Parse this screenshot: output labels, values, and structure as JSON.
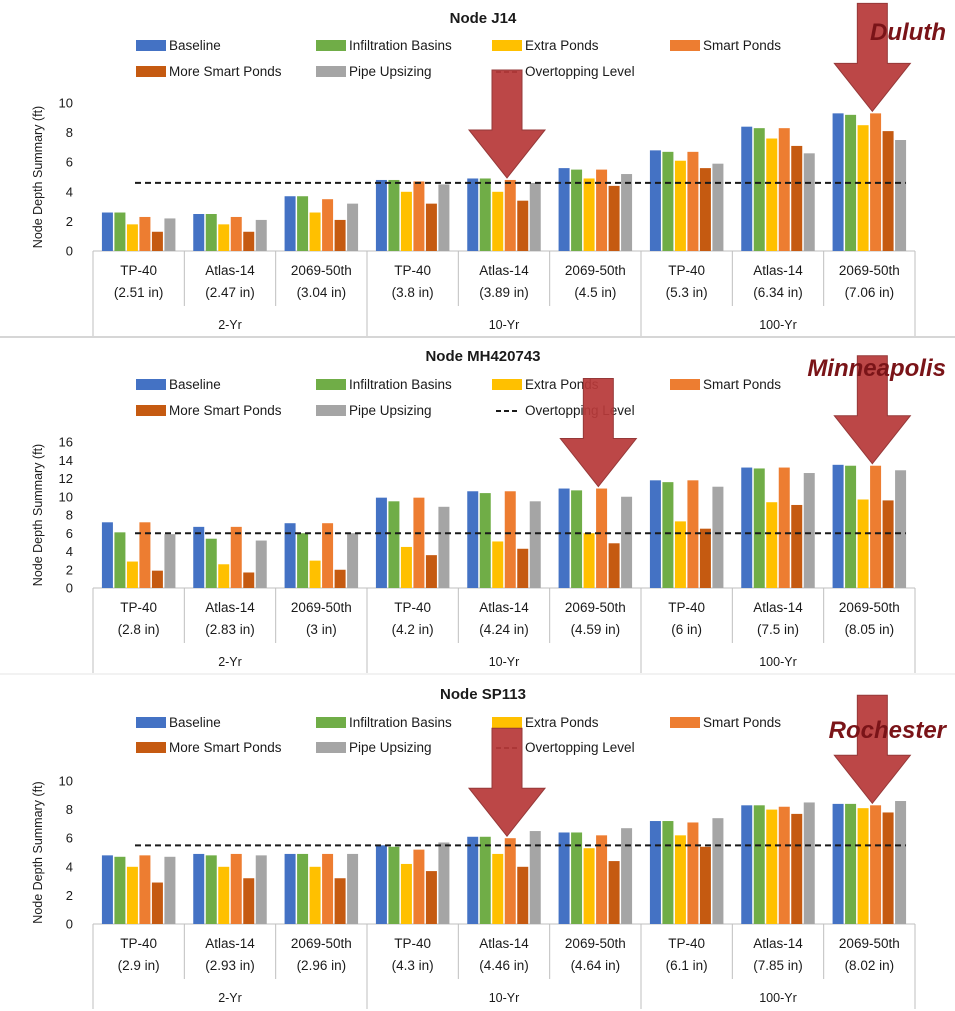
{
  "colors": {
    "Baseline": "#4472c4",
    "Infiltration Basins": "#70ad47",
    "Extra Ponds": "#ffc000",
    "Smart Ponds": "#ed7d31",
    "More Smart Ponds": "#c55a11",
    "Pipe Upsizing": "#a5a5a5",
    "Overtopping Level": "#1a1a1a",
    "arrow": "#b83a3a",
    "city_text": "#7a1418"
  },
  "legend_labels": [
    "Baseline",
    "Infiltration Basins",
    "Extra Ponds",
    "Smart Ponds",
    "More Smart Ponds",
    "Pipe Upsizing",
    "Overtopping Level"
  ],
  "chart_data": [
    {
      "type": "bar",
      "title": "Node J14",
      "city": "Duluth",
      "ylabel": "Node Depth Summary (ft)",
      "ylim": [
        0,
        10
      ],
      "yticks": [
        0,
        2,
        4,
        6,
        8,
        10
      ],
      "grid": false,
      "legend_position": "top",
      "categories": [
        [
          "TP-40",
          "(2.51 in)"
        ],
        [
          "Atlas-14",
          "(2.47 in)"
        ],
        [
          "2069-50th",
          "(3.04 in)"
        ],
        [
          "TP-40",
          "(3.8 in)"
        ],
        [
          "Atlas-14",
          "(3.89 in)"
        ],
        [
          "2069-50th",
          "(4.5 in)"
        ],
        [
          "TP-40",
          "(5.3 in)"
        ],
        [
          "Atlas-14",
          "(6.34 in)"
        ],
        [
          "2069-50th",
          "(7.06 in)"
        ]
      ],
      "groups": [
        "2-Yr",
        "10-Yr",
        "100-Yr"
      ],
      "series": [
        {
          "name": "Baseline",
          "values": [
            2.6,
            2.5,
            3.7,
            4.8,
            4.9,
            5.6,
            6.8,
            8.4,
            9.3
          ]
        },
        {
          "name": "Infiltration Basins",
          "values": [
            2.6,
            2.5,
            3.7,
            4.8,
            4.9,
            5.5,
            6.7,
            8.3,
            9.2
          ]
        },
        {
          "name": "Extra Ponds",
          "values": [
            1.8,
            1.8,
            2.6,
            4.0,
            4.0,
            4.9,
            6.1,
            7.6,
            8.5
          ]
        },
        {
          "name": "Smart Ponds",
          "values": [
            2.3,
            2.3,
            3.5,
            4.7,
            4.8,
            5.5,
            6.7,
            8.3,
            9.3
          ]
        },
        {
          "name": "More Smart Ponds",
          "values": [
            1.3,
            1.3,
            2.1,
            3.2,
            3.4,
            4.4,
            5.6,
            7.1,
            8.1
          ]
        },
        {
          "name": "Pipe Upsizing",
          "values": [
            2.2,
            2.1,
            3.2,
            4.5,
            4.6,
            5.2,
            5.9,
            6.6,
            7.5
          ]
        }
      ],
      "overtopping_level": 4.6,
      "arrow_categories": [
        4,
        8
      ]
    },
    {
      "type": "bar",
      "title": "Node MH420743",
      "city": "Minneapolis",
      "ylabel": "Node Depth Summary (ft)",
      "ylim": [
        0,
        16
      ],
      "yticks": [
        0,
        2,
        4,
        6,
        8,
        10,
        12,
        14,
        16
      ],
      "grid": false,
      "legend_position": "top",
      "categories": [
        [
          "TP-40",
          "(2.8 in)"
        ],
        [
          "Atlas-14",
          "(2.83 in)"
        ],
        [
          "2069-50th",
          "(3 in)"
        ],
        [
          "TP-40",
          "(4.2 in)"
        ],
        [
          "Atlas-14",
          "(4.24 in)"
        ],
        [
          "2069-50th",
          "(4.59 in)"
        ],
        [
          "TP-40",
          "(6 in)"
        ],
        [
          "Atlas-14",
          "(7.5 in)"
        ],
        [
          "2069-50th",
          "(8.05 in)"
        ]
      ],
      "groups": [
        "2-Yr",
        "10-Yr",
        "100-Yr"
      ],
      "series": [
        {
          "name": "Baseline",
          "values": [
            7.2,
            6.7,
            7.1,
            9.9,
            10.6,
            10.9,
            11.8,
            13.2,
            13.5
          ]
        },
        {
          "name": "Infiltration Basins",
          "values": [
            6.1,
            5.4,
            6.0,
            9.5,
            10.4,
            10.7,
            11.6,
            13.1,
            13.4
          ]
        },
        {
          "name": "Extra Ponds",
          "values": [
            2.9,
            2.6,
            3.0,
            4.5,
            5.1,
            6.0,
            7.3,
            9.4,
            9.7
          ]
        },
        {
          "name": "Smart Ponds",
          "values": [
            7.2,
            6.7,
            7.1,
            9.9,
            10.6,
            10.9,
            11.8,
            13.2,
            13.4
          ]
        },
        {
          "name": "More Smart Ponds",
          "values": [
            1.9,
            1.7,
            2.0,
            3.6,
            4.3,
            4.9,
            6.5,
            9.1,
            9.6
          ]
        },
        {
          "name": "Pipe Upsizing",
          "values": [
            5.9,
            5.2,
            6.0,
            8.9,
            9.5,
            10.0,
            11.1,
            12.6,
            12.9
          ]
        }
      ],
      "overtopping_level": 6.0,
      "arrow_categories": [
        5,
        8
      ]
    },
    {
      "type": "bar",
      "title": "Node SP113",
      "city": "Rochester",
      "ylabel": "Node Depth Summary (ft)",
      "ylim": [
        0,
        10
      ],
      "yticks": [
        0,
        2,
        4,
        6,
        8,
        10
      ],
      "grid": false,
      "legend_position": "top",
      "categories": [
        [
          "TP-40",
          "(2.9 in)"
        ],
        [
          "Atlas-14",
          "(2.93 in)"
        ],
        [
          "2069-50th",
          "(2.96 in)"
        ],
        [
          "TP-40",
          "(4.3 in)"
        ],
        [
          "Atlas-14",
          "(4.46 in)"
        ],
        [
          "2069-50th",
          "(4.64 in)"
        ],
        [
          "TP-40",
          "(6.1 in)"
        ],
        [
          "Atlas-14",
          "(7.85 in)"
        ],
        [
          "2069-50th",
          "(8.02 in)"
        ]
      ],
      "groups": [
        "2-Yr",
        "10-Yr",
        "100-Yr"
      ],
      "series": [
        {
          "name": "Baseline",
          "values": [
            4.8,
            4.9,
            4.9,
            5.5,
            6.1,
            6.4,
            7.2,
            8.3,
            8.4
          ]
        },
        {
          "name": "Infiltration Basins",
          "values": [
            4.7,
            4.8,
            4.9,
            5.4,
            6.1,
            6.4,
            7.2,
            8.3,
            8.4
          ]
        },
        {
          "name": "Extra Ponds",
          "values": [
            4.0,
            4.0,
            4.0,
            4.2,
            4.9,
            5.3,
            6.2,
            8.0,
            8.1
          ]
        },
        {
          "name": "Smart Ponds",
          "values": [
            4.8,
            4.9,
            4.9,
            5.2,
            6.0,
            6.2,
            7.1,
            8.2,
            8.3
          ]
        },
        {
          "name": "More Smart Ponds",
          "values": [
            2.9,
            3.2,
            3.2,
            3.7,
            4.0,
            4.4,
            5.4,
            7.7,
            7.8
          ]
        },
        {
          "name": "Pipe Upsizing",
          "values": [
            4.7,
            4.8,
            4.9,
            5.7,
            6.5,
            6.7,
            7.4,
            8.5,
            8.6
          ]
        }
      ],
      "overtopping_level": 5.5,
      "arrow_categories": [
        4,
        8
      ]
    }
  ]
}
